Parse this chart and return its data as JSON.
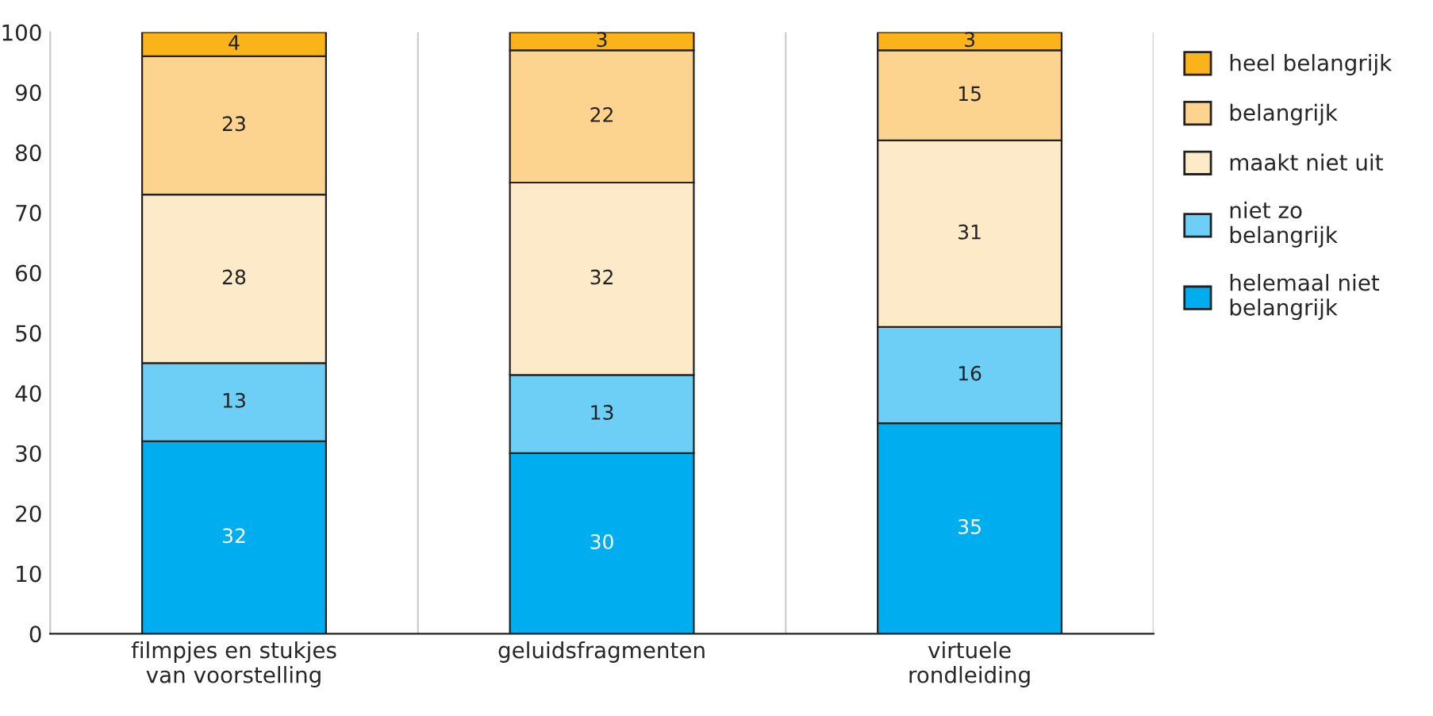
{
  "chart_data": {
    "type": "bar",
    "stacked": true,
    "categories": [
      "filmpjes en stukjes\nvan voorstelling",
      "geluidsfragmenten",
      "virtuele\nrondleiding"
    ],
    "series": [
      {
        "name": "helemaal niet belangrijk",
        "color": "#00aeef",
        "values": [
          32,
          30,
          35
        ]
      },
      {
        "name": "niet zo belangrijk",
        "color": "#6dcff6",
        "values": [
          13,
          13,
          16
        ]
      },
      {
        "name": "maakt niet uit",
        "color": "#fdeac8",
        "values": [
          28,
          32,
          31
        ]
      },
      {
        "name": "belangrijk",
        "color": "#fdd48f",
        "values": [
          23,
          22,
          15
        ]
      },
      {
        "name": "heel belangrijk",
        "color": "#fbb31a",
        "values": [
          4,
          3,
          3
        ]
      }
    ],
    "ylim": [
      0,
      100
    ],
    "yticks": [
      0,
      10,
      20,
      30,
      40,
      50,
      60,
      70,
      80,
      90,
      100
    ],
    "grid": "x",
    "legend": "top right",
    "data_labels": true
  }
}
